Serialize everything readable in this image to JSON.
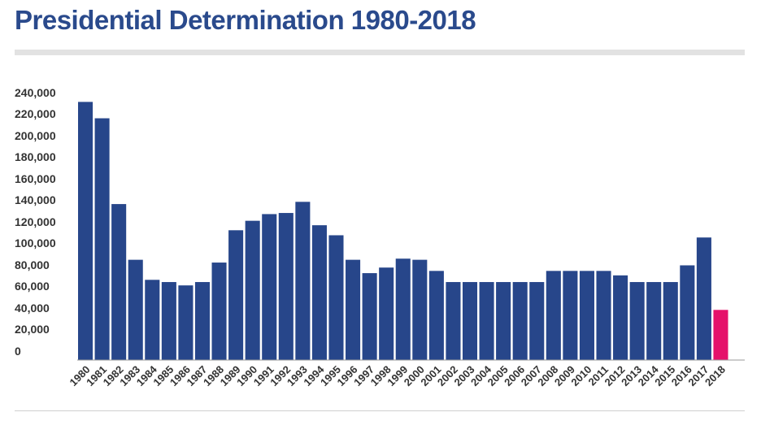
{
  "header": {
    "title": "Presidential Determination 1980-2018"
  },
  "colors": {
    "title": "#2a4a8c",
    "bar": "#27468a",
    "highlight": "#e5116a",
    "axis": "#999999"
  },
  "chart_data": {
    "type": "bar",
    "title": "Presidential Determination 1980-2018",
    "xlabel": "",
    "ylabel": "",
    "ylim": [
      0,
      240000
    ],
    "yticks": [
      "0",
      "20,000",
      "40,000",
      "60,000",
      "80,000",
      "100,000",
      "120,000",
      "140,000",
      "160,000",
      "180,000",
      "200,000",
      "220,000",
      "240,000"
    ],
    "categories": [
      "1980",
      "1981",
      "1982",
      "1983",
      "1984",
      "1985",
      "1986",
      "1987",
      "1988",
      "1989",
      "1990",
      "1991",
      "1992",
      "1993",
      "1994",
      "1995",
      "1996",
      "1997",
      "1998",
      "1999",
      "2000",
      "2001",
      "2002",
      "2003",
      "2004",
      "2005",
      "2006",
      "2007",
      "2008",
      "2009",
      "2010",
      "2011",
      "2012",
      "2013",
      "2014",
      "2015",
      "2016",
      "2017",
      "2018"
    ],
    "values": [
      231700,
      217000,
      140000,
      90000,
      72000,
      70000,
      67000,
      70000,
      87500,
      116500,
      125000,
      131000,
      132000,
      142000,
      121000,
      112000,
      90000,
      78000,
      83000,
      91000,
      90000,
      80000,
      70000,
      70000,
      70000,
      70000,
      70000,
      70000,
      80000,
      80000,
      80000,
      80000,
      76000,
      70000,
      70000,
      70000,
      85000,
      110000,
      45000
    ],
    "highlight_category": "2018",
    "grid": false,
    "legend": "none"
  }
}
